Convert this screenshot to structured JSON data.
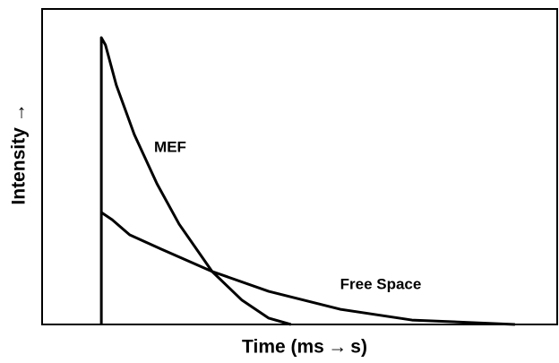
{
  "chart_data": {
    "type": "line",
    "xlabel": "Time (ms → s)",
    "ylabel": "Intensity →",
    "xlim": [
      0,
      100
    ],
    "ylim": [
      0,
      100
    ],
    "series": [
      {
        "name": "MEF",
        "color": "#000000",
        "x": [
          11.5,
          11.5,
          12.3,
          14.4,
          17.9,
          22.3,
          26.6,
          33.0,
          38.8,
          44.0,
          48.3
        ],
        "values": [
          0,
          90.9,
          88.6,
          75.9,
          60.2,
          44.6,
          31.8,
          16.8,
          7.7,
          2.0,
          0
        ]
      },
      {
        "name": "Free Space",
        "color": "#000000",
        "x": [
          11.5,
          13.6,
          17.0,
          23.1,
          33.0,
          44.0,
          57.9,
          71.8,
          91.8
        ],
        "values": [
          35.5,
          33.2,
          28.4,
          23.9,
          16.8,
          10.5,
          4.8,
          1.4,
          0
        ]
      }
    ]
  }
}
